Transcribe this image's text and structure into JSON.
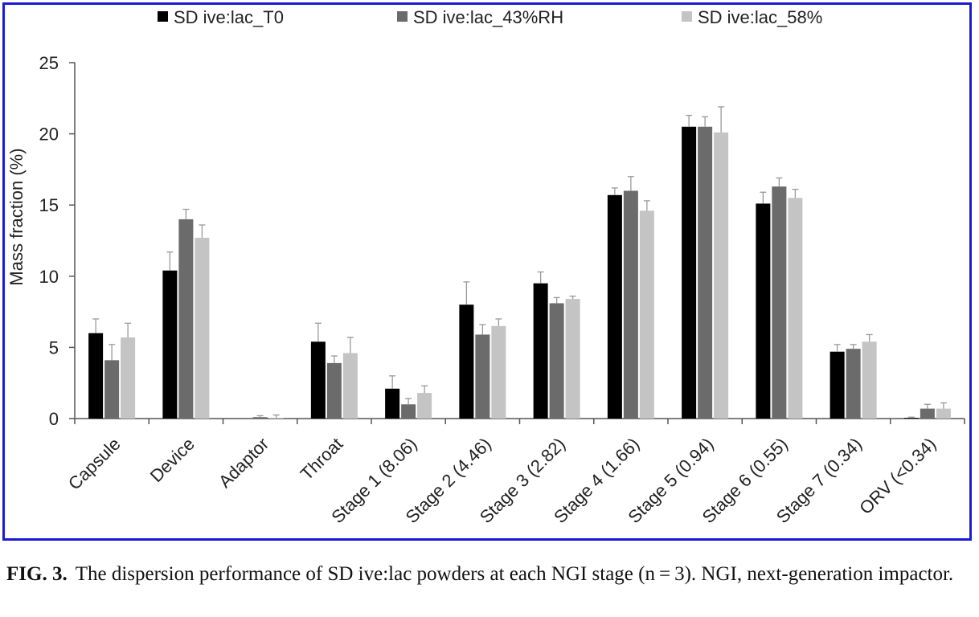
{
  "chart_data": {
    "type": "bar",
    "categories": [
      "Capsule",
      "Device",
      "Adaptor",
      "Throat",
      "Stage 1 (8.06)",
      "Stage 2 (4.46)",
      "Stage 3 (2.82)",
      "Stage 4 (1.66)",
      "Stage 5 (0.94)",
      "Stage 6 (0.55)",
      "Stage 7 (0.34)",
      "ORV (<0.34)"
    ],
    "series": [
      {
        "name": "SD ive:lac_T0",
        "color": "#000000",
        "values": [
          6.0,
          10.4,
          0.0,
          5.4,
          2.1,
          8.0,
          9.5,
          15.7,
          20.5,
          15.1,
          4.7,
          0.05
        ],
        "errors": [
          1.0,
          1.3,
          0.0,
          1.3,
          0.9,
          1.6,
          0.8,
          0.5,
          0.8,
          0.8,
          0.5,
          0.05
        ]
      },
      {
        "name": "SD ive:lac_43%RH",
        "color": "#6b6b6b",
        "values": [
          4.1,
          14.0,
          0.1,
          3.9,
          1.0,
          5.9,
          8.1,
          16.0,
          20.5,
          16.3,
          4.9,
          0.7
        ],
        "errors": [
          1.1,
          0.7,
          0.1,
          0.5,
          0.4,
          0.7,
          0.4,
          1.0,
          0.7,
          0.6,
          0.3,
          0.3
        ]
      },
      {
        "name": "SD ive:lac_58%",
        "color": "#c4c4c4",
        "values": [
          5.7,
          12.7,
          0.05,
          4.6,
          1.8,
          6.5,
          8.4,
          14.6,
          20.1,
          15.5,
          5.4,
          0.7
        ],
        "errors": [
          1.0,
          0.9,
          0.2,
          1.1,
          0.5,
          0.5,
          0.2,
          0.7,
          1.8,
          0.6,
          0.5,
          0.4
        ]
      }
    ],
    "ylabel": "Mass fraction (%)",
    "xlabel": "",
    "ylim": [
      0,
      25
    ],
    "yticks": [
      0,
      5,
      10,
      15,
      20,
      25
    ],
    "grid": false,
    "legend_position": "top"
  },
  "caption": {
    "label": "FIG. 3.",
    "text": "The dispersion performance of SD ive:lac powders at each NGI stage (n = 3). NGI, next-generation impactor."
  }
}
